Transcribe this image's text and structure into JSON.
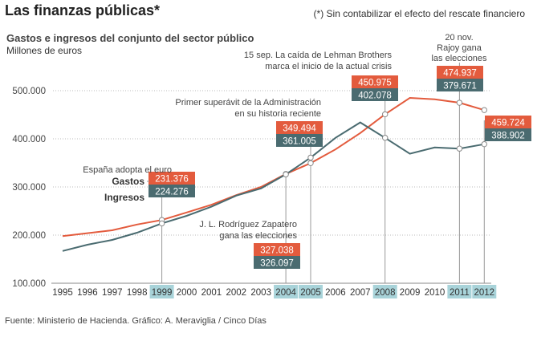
{
  "title": "Las finanzas públicas*",
  "footnote": "(*) Sin contabilizar el efecto del rescate financiero",
  "source": "Fuente: Ministerio de Hacienda. Gráfico: A. Meraviglia / Cinco Días",
  "chart_data": {
    "type": "line",
    "title": "Gastos e ingresos del conjunto del sector público",
    "ylabel": "Millones de euros",
    "xlabel": "",
    "ylim": [
      100000,
      500000
    ],
    "yticks": [
      100000,
      200000,
      300000,
      400000,
      500000
    ],
    "ytick_labels": [
      "100.000",
      "200.000",
      "300.000",
      "400.000",
      "500.000"
    ],
    "x": [
      "1995",
      "1996",
      "1997",
      "1998",
      "1999",
      "2000",
      "2001",
      "2002",
      "2003",
      "2004",
      "2005",
      "2006",
      "2007",
      "2008",
      "2009",
      "2010",
      "2011",
      "2012"
    ],
    "highlighted_years": [
      "1999",
      "2004",
      "2005",
      "2008",
      "2011",
      "2012"
    ],
    "series": [
      {
        "name": "Gastos",
        "color": "#e35b3d",
        "values": [
          198000,
          204000,
          210000,
          222000,
          231376,
          247000,
          263000,
          283000,
          300000,
          327038,
          349494,
          378000,
          412000,
          450975,
          485000,
          482000,
          474937,
          459724
        ]
      },
      {
        "name": "Ingresos",
        "color": "#4a6b70",
        "values": [
          167000,
          180000,
          190000,
          205000,
          224276,
          240000,
          259000,
          282000,
          297000,
          326097,
          361005,
          402000,
          434000,
          402078,
          369000,
          382000,
          379671,
          388902
        ]
      }
    ],
    "legend": {
      "gastos": "Gastos",
      "ingresos": "Ingresos"
    },
    "annotations": [
      {
        "year": "1999",
        "lines": [
          "España adopta el euro"
        ],
        "gastos": "231.376",
        "ingresos": "224.276"
      },
      {
        "year": "2004",
        "lines": [
          "J. L. Rodríguez Zapatero",
          "gana las elecciones"
        ],
        "gastos": "327.038",
        "ingresos": "326.097"
      },
      {
        "year": "2005",
        "lines": [
          "Primer superávit de la Administración",
          "en su historia reciente"
        ],
        "gastos": "349.494",
        "ingresos": "361.005"
      },
      {
        "year": "2008",
        "lines": [
          "15 sep. La caída de Lehman Brothers",
          "marca el inicio de la actual crisis"
        ],
        "gastos": "450.975",
        "ingresos": "402.078"
      },
      {
        "year": "2011",
        "lines": [
          "20 nov.",
          "Rajoy gana",
          "las elecciones"
        ],
        "gastos": "474.937",
        "ingresos": "379.671"
      },
      {
        "year": "2012",
        "lines": [],
        "gastos": "459.724",
        "ingresos": "388.902"
      }
    ]
  }
}
